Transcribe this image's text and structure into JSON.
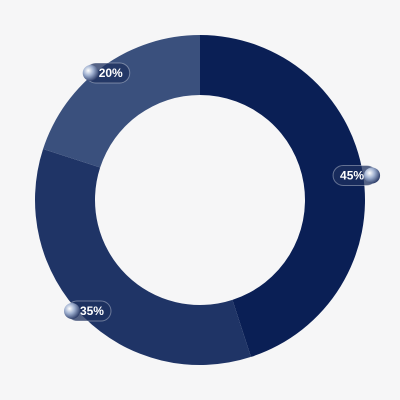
{
  "chart_data": {
    "type": "donut",
    "values": [
      45,
      35,
      20
    ],
    "value_labels": [
      "45%",
      "35%",
      "20%"
    ],
    "colors": [
      "#0a1f55",
      "#1f3466",
      "#3a507d"
    ]
  }
}
